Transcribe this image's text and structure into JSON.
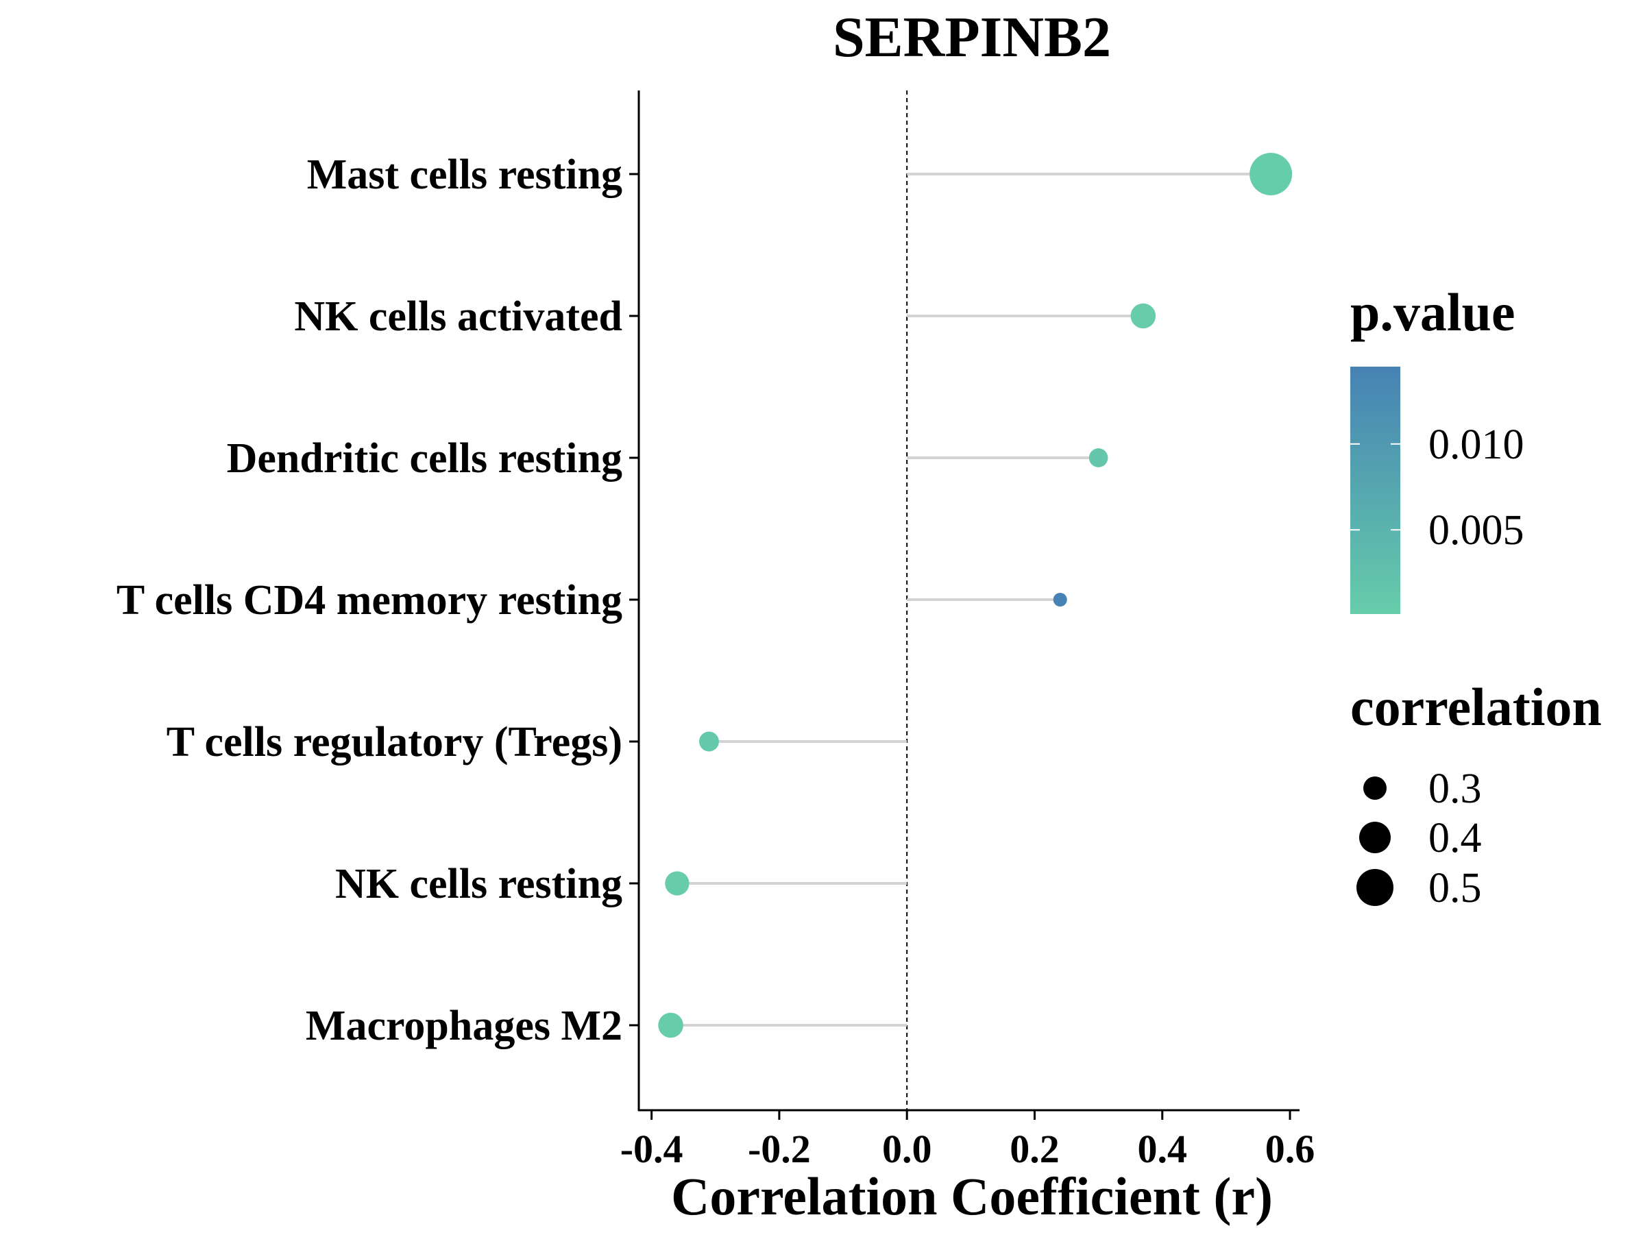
{
  "chart_data": {
    "type": "lollipop",
    "title": "SERPINB2",
    "xlabel": "Correlation Coefficient (r)",
    "ylabel": "",
    "xlim": [
      -0.42,
      0.615
    ],
    "xticks": [
      "-0.4",
      "-0.2",
      "0.0",
      "0.2",
      "0.4",
      "0.6"
    ],
    "xtick_values": [
      -0.4,
      -0.2,
      0.0,
      0.2,
      0.4,
      0.6
    ],
    "reference_line": 0,
    "categories": [
      "Mast cells resting",
      "NK cells activated",
      "Dendritic cells resting",
      "T cells CD4 memory resting",
      "T cells regulatory (Tregs)",
      "NK cells resting",
      "Macrophages M2"
    ],
    "values": [
      0.57,
      0.37,
      0.3,
      0.24,
      -0.31,
      -0.36,
      -0.37
    ],
    "p_values": [
      0.0001,
      0.0002,
      0.0012,
      0.0145,
      0.0009,
      0.0002,
      0.0002
    ],
    "legend": {
      "color_title": "p.value",
      "color_ticks": [
        "0.010",
        "0.005"
      ],
      "color_tick_values": [
        0.01,
        0.005
      ],
      "color_range": [
        0.0001,
        0.0145
      ],
      "color_low": "#66CDAA",
      "color_high": "#4682B4",
      "size_title": "correlation",
      "size_labels": [
        "0.3",
        "0.4",
        "0.5"
      ],
      "size_values": [
        0.3,
        0.4,
        0.5
      ]
    },
    "segment_color": "#D3D3D3",
    "grid": false
  }
}
